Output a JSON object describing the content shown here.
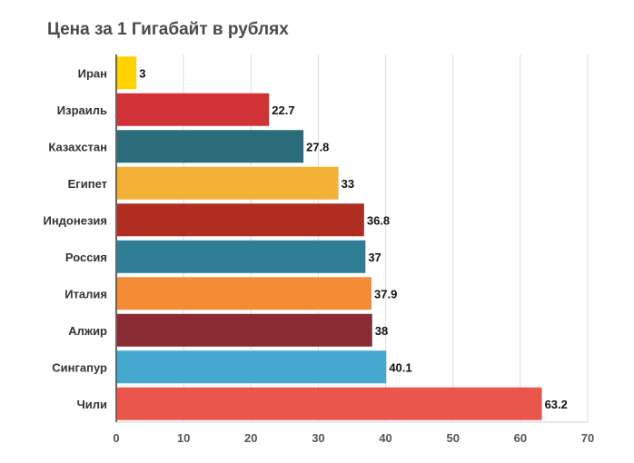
{
  "chart_data": {
    "type": "bar",
    "orientation": "horizontal",
    "title": "Цена за 1 Гигабайт в рублях",
    "xlabel": "",
    "ylabel": "",
    "xlim": [
      0,
      70
    ],
    "ticks": [
      "0",
      "10",
      "20",
      "30",
      "40",
      "50",
      "60",
      "70"
    ],
    "grid": true,
    "categories": [
      "Иран",
      "Израиль",
      "Казахстан",
      "Египет",
      "Индонезия",
      "Россия",
      "Италия",
      "Алжир",
      "Сингапур",
      "Чили"
    ],
    "values": [
      3,
      22.7,
      27.8,
      33,
      36.8,
      37,
      37.9,
      38,
      40.1,
      63.2
    ],
    "value_labels": [
      "3",
      "22.7",
      "27.8",
      "33",
      "36.8",
      "37",
      "37.9",
      "38",
      "40.1",
      "63.2"
    ],
    "colors": [
      "#FFD300",
      "#D03236",
      "#2B6C7B",
      "#F4B138",
      "#B02D22",
      "#2F7E95",
      "#F48C35",
      "#8A2A32",
      "#44A8CF",
      "#EA564C"
    ]
  }
}
